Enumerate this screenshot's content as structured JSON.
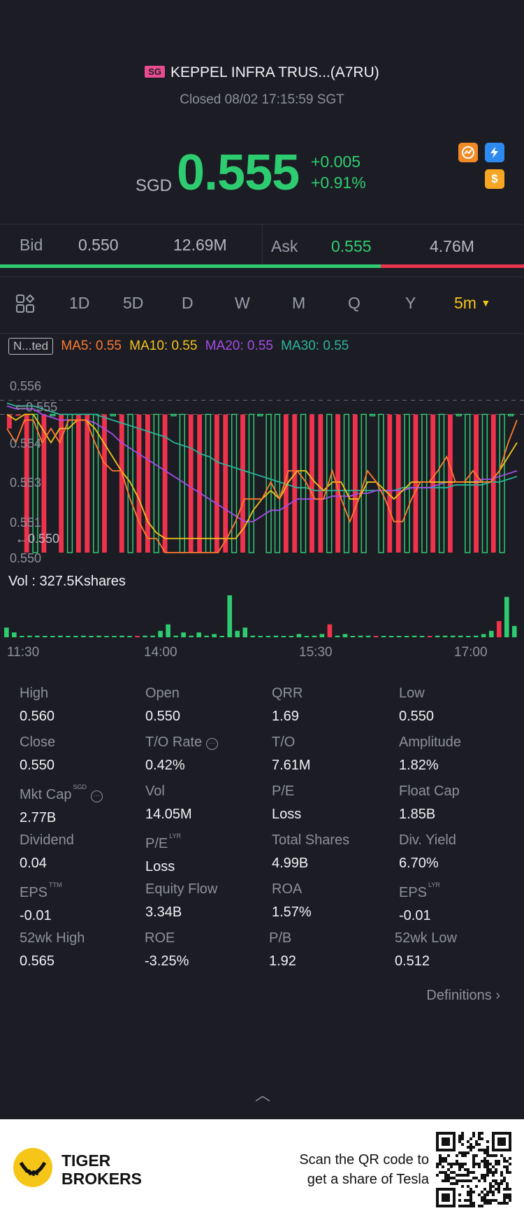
{
  "header": {
    "market_badge": "SG",
    "title": "KEPPEL INFRA TRUS...(A7RU)",
    "status": "Closed 08/02 17:15:59 SGT"
  },
  "quote": {
    "currency": "SGD",
    "price": "0.555",
    "change": "+0.005",
    "change_pct": "+0.91%",
    "icons": [
      "chart-badge-icon",
      "flash-1-icon",
      "dollar-icon"
    ]
  },
  "bidask": {
    "bid_label": "Bid",
    "bid_price": "0.550",
    "bid_size": "12.69M",
    "ask_label": "Ask",
    "ask_price": "0.555",
    "ask_size": "4.76M",
    "bid_ratio": 0.727
  },
  "tabs": {
    "items": [
      "1D",
      "5D",
      "D",
      "W",
      "M",
      "Q",
      "Y"
    ],
    "selected": "5m"
  },
  "indicators": {
    "chip": "N...ted",
    "ma5": "MA5: 0.55",
    "ma10": "MA10: 0.55",
    "ma20": "MA20: 0.55",
    "ma30": "MA30: 0.55",
    "colors": {
      "ma5": "#ff7a2e",
      "ma10": "#f3c41c",
      "ma20": "#a64ce8",
      "ma30": "#2bb59a",
      "up": "#2ecc71",
      "down": "#f0334d"
    }
  },
  "chart": {
    "y_labels": [
      "0.556",
      "0.555",
      "0.554",
      "0.553",
      "0.551",
      "0.550"
    ],
    "left_markers": [
      "0.555",
      "0.550"
    ],
    "vol_label": "Vol  : 327.5Kshares",
    "time_labels": [
      "11:30",
      "14:00",
      "15:30",
      "17:00"
    ]
  },
  "chart_data": {
    "type": "candlestick",
    "ylim": [
      0.5498,
      0.5563
    ],
    "candles": [
      {
        "o": 0.555,
        "c": 0.5545,
        "dir": "down"
      },
      {
        "o": 0.555,
        "c": 0.555,
        "dir": "down"
      },
      {
        "o": 0.555,
        "c": 0.5501,
        "dir": "down"
      },
      {
        "o": 0.5501,
        "c": 0.555,
        "dir": "up"
      },
      {
        "o": 0.555,
        "c": 0.5501,
        "dir": "down"
      },
      {
        "o": 0.555,
        "c": 0.555,
        "dir": "up"
      },
      {
        "o": 0.555,
        "c": 0.5501,
        "dir": "down"
      },
      {
        "o": 0.5501,
        "c": 0.555,
        "dir": "up"
      },
      {
        "o": 0.555,
        "c": 0.5501,
        "dir": "down"
      },
      {
        "o": 0.555,
        "c": 0.5501,
        "dir": "down"
      },
      {
        "o": 0.5501,
        "c": 0.555,
        "dir": "up"
      },
      {
        "o": 0.555,
        "c": 0.5501,
        "dir": "down"
      },
      {
        "o": 0.555,
        "c": 0.555,
        "dir": "up"
      },
      {
        "o": 0.555,
        "c": 0.5501,
        "dir": "down"
      },
      {
        "o": 0.5501,
        "c": 0.555,
        "dir": "up"
      },
      {
        "o": 0.555,
        "c": 0.5501,
        "dir": "down"
      },
      {
        "o": 0.555,
        "c": 0.5501,
        "dir": "down"
      },
      {
        "o": 0.5501,
        "c": 0.555,
        "dir": "up"
      },
      {
        "o": 0.555,
        "c": 0.5501,
        "dir": "down"
      },
      {
        "o": 0.555,
        "c": 0.555,
        "dir": "up"
      },
      {
        "o": 0.5501,
        "c": 0.555,
        "dir": "up"
      },
      {
        "o": 0.555,
        "c": 0.5501,
        "dir": "down"
      },
      {
        "o": 0.555,
        "c": 0.5501,
        "dir": "down"
      },
      {
        "o": 0.5501,
        "c": 0.555,
        "dir": "up"
      },
      {
        "o": 0.555,
        "c": 0.5501,
        "dir": "down"
      },
      {
        "o": 0.555,
        "c": 0.5501,
        "dir": "down"
      },
      {
        "o": 0.5501,
        "c": 0.555,
        "dir": "up"
      },
      {
        "o": 0.555,
        "c": 0.5501,
        "dir": "down"
      },
      {
        "o": 0.5501,
        "c": 0.555,
        "dir": "up"
      },
      {
        "o": 0.555,
        "c": 0.555,
        "dir": "up"
      },
      {
        "o": 0.5501,
        "c": 0.555,
        "dir": "up"
      },
      {
        "o": 0.5501,
        "c": 0.555,
        "dir": "up"
      },
      {
        "o": 0.555,
        "c": 0.5501,
        "dir": "down"
      },
      {
        "o": 0.555,
        "c": 0.5501,
        "dir": "down"
      },
      {
        "o": 0.5501,
        "c": 0.555,
        "dir": "up"
      },
      {
        "o": 0.555,
        "c": 0.5501,
        "dir": "down"
      },
      {
        "o": 0.555,
        "c": 0.5501,
        "dir": "down"
      },
      {
        "o": 0.5501,
        "c": 0.555,
        "dir": "up"
      },
      {
        "o": 0.555,
        "c": 0.5501,
        "dir": "down"
      },
      {
        "o": 0.5501,
        "c": 0.555,
        "dir": "up"
      },
      {
        "o": 0.555,
        "c": 0.5501,
        "dir": "down"
      },
      {
        "o": 0.5501,
        "c": 0.555,
        "dir": "up"
      },
      {
        "o": 0.555,
        "c": 0.555,
        "dir": "up"
      },
      {
        "o": 0.5501,
        "c": 0.555,
        "dir": "up"
      },
      {
        "o": 0.555,
        "c": 0.5501,
        "dir": "down"
      },
      {
        "o": 0.555,
        "c": 0.5501,
        "dir": "down"
      },
      {
        "o": 0.5501,
        "c": 0.555,
        "dir": "up"
      },
      {
        "o": 0.555,
        "c": 0.5501,
        "dir": "down"
      },
      {
        "o": 0.5501,
        "c": 0.555,
        "dir": "up"
      },
      {
        "o": 0.555,
        "c": 0.5501,
        "dir": "down"
      },
      {
        "o": 0.5501,
        "c": 0.555,
        "dir": "up"
      },
      {
        "o": 0.555,
        "c": 0.5501,
        "dir": "down"
      },
      {
        "o": 0.555,
        "c": 0.555,
        "dir": "up"
      },
      {
        "o": 0.5501,
        "c": 0.555,
        "dir": "up"
      },
      {
        "o": 0.555,
        "c": 0.5501,
        "dir": "down"
      },
      {
        "o": 0.5501,
        "c": 0.555,
        "dir": "up"
      },
      {
        "o": 0.555,
        "c": 0.5501,
        "dir": "down"
      },
      {
        "o": 0.5501,
        "c": 0.555,
        "dir": "up"
      },
      {
        "o": 0.555,
        "c": 0.555,
        "dir": "up"
      }
    ],
    "ma5": [
      0.5545,
      0.554,
      0.5548,
      0.5548,
      0.554,
      0.5545,
      0.554,
      0.5548,
      0.5548,
      0.5548,
      0.554,
      0.5533,
      0.553,
      0.553,
      0.552,
      0.5512,
      0.5506,
      0.5506,
      0.5501,
      0.5501,
      0.5501,
      0.5501,
      0.5501,
      0.5501,
      0.5501,
      0.5506,
      0.5512,
      0.552,
      0.552,
      0.552,
      0.5526,
      0.552,
      0.553,
      0.553,
      0.5526,
      0.552,
      0.552,
      0.553,
      0.552,
      0.5512,
      0.552,
      0.553,
      0.5526,
      0.552,
      0.5512,
      0.5512,
      0.552,
      0.5526,
      0.5526,
      0.553,
      0.5535,
      0.5526,
      0.5526,
      0.553,
      0.5526,
      0.5526,
      0.553,
      0.554,
      0.5548
    ],
    "ma10": [
      0.555,
      0.5548,
      0.555,
      0.555,
      0.5545,
      0.554,
      0.5545,
      0.5545,
      0.5548,
      0.5548,
      0.5545,
      0.554,
      0.5535,
      0.553,
      0.5526,
      0.552,
      0.5512,
      0.5508,
      0.5506,
      0.5506,
      0.5506,
      0.5506,
      0.5506,
      0.5506,
      0.5506,
      0.5506,
      0.5506,
      0.551,
      0.5516,
      0.552,
      0.5523,
      0.552,
      0.5526,
      0.553,
      0.553,
      0.5526,
      0.5523,
      0.5526,
      0.5526,
      0.552,
      0.552,
      0.5526,
      0.5526,
      0.5523,
      0.552,
      0.5523,
      0.5526,
      0.5526,
      0.5526,
      0.5526,
      0.5526,
      0.5526,
      0.5526,
      0.5526,
      0.5526,
      0.5526,
      0.553,
      0.5535,
      0.554
    ],
    "ma20": [
      0.5553,
      0.5552,
      0.5552,
      0.5552,
      0.555,
      0.5549,
      0.5548,
      0.5548,
      0.5548,
      0.5548,
      0.5547,
      0.5545,
      0.5543,
      0.554,
      0.5538,
      0.5536,
      0.5534,
      0.5532,
      0.553,
      0.5528,
      0.5526,
      0.5524,
      0.5522,
      0.552,
      0.5518,
      0.5516,
      0.5514,
      0.5512,
      0.5512,
      0.5514,
      0.5516,
      0.5516,
      0.5518,
      0.552,
      0.552,
      0.552,
      0.552,
      0.5521,
      0.5521,
      0.5521,
      0.5522,
      0.5522,
      0.5523,
      0.5523,
      0.5523,
      0.5523,
      0.5524,
      0.5524,
      0.5524,
      0.5525,
      0.5526,
      0.5526,
      0.5526,
      0.5526,
      0.5527,
      0.5527,
      0.5528,
      0.5529,
      0.553
    ],
    "ma30": [
      0.5554,
      0.5553,
      0.5553,
      0.5553,
      0.5552,
      0.5551,
      0.555,
      0.555,
      0.555,
      0.555,
      0.555,
      0.5549,
      0.5548,
      0.5547,
      0.5546,
      0.5545,
      0.5544,
      0.5543,
      0.5542,
      0.554,
      0.5539,
      0.5538,
      0.5536,
      0.5535,
      0.5533,
      0.5532,
      0.5531,
      0.553,
      0.5529,
      0.5528,
      0.5527,
      0.5526,
      0.5525,
      0.5524,
      0.5524,
      0.5523,
      0.5523,
      0.5523,
      0.5523,
      0.5523,
      0.5523,
      0.5523,
      0.5523,
      0.5523,
      0.5523,
      0.5524,
      0.5524,
      0.5524,
      0.5524,
      0.5524,
      0.5524,
      0.5525,
      0.5525,
      0.5525,
      0.5525,
      0.5526,
      0.5526,
      0.5527,
      0.5528
    ],
    "volumes": [
      6,
      3,
      0,
      1,
      1,
      0,
      0,
      1,
      0,
      0,
      1,
      0,
      1,
      0,
      0,
      1,
      0,
      0,
      1,
      1,
      4,
      8,
      1,
      3,
      1,
      3,
      1,
      2,
      0,
      26,
      4,
      6,
      1,
      0,
      0,
      1,
      0,
      0,
      2,
      0,
      1,
      2,
      8,
      1,
      2,
      0,
      1,
      1,
      0,
      0,
      0,
      0,
      0,
      1,
      0,
      0,
      1,
      1,
      1,
      1,
      0,
      1,
      2,
      4,
      10,
      25,
      7
    ]
  },
  "stats": [
    {
      "label": "High",
      "value": "0.560"
    },
    {
      "label": "Open",
      "value": "0.550"
    },
    {
      "label": "QRR",
      "value": "1.69"
    },
    {
      "label": "Low",
      "value": "0.550"
    },
    {
      "label": "Close",
      "value": "0.550"
    },
    {
      "label": "T/O Rate",
      "value": "0.42%",
      "info": true
    },
    {
      "label": "T/O",
      "value": "7.61M"
    },
    {
      "label": "Amplitude",
      "value": "1.82%"
    },
    {
      "label": "Mkt Cap",
      "value": "2.77B",
      "sup": "SGD",
      "info": true
    },
    {
      "label": "Vol",
      "value": "14.05M"
    },
    {
      "label": "P/E",
      "value": "Loss"
    },
    {
      "label": "Float Cap",
      "value": "1.85B"
    },
    {
      "label": "Dividend",
      "value": "0.04"
    },
    {
      "label": "P/E",
      "value": "Loss",
      "sup": "LYR"
    },
    {
      "label": "Total Shares",
      "value": "4.99B"
    },
    {
      "label": "Div. Yield",
      "value": "6.70%"
    },
    {
      "label": "EPS",
      "value": "-0.01",
      "sup": "TTM"
    },
    {
      "label": "Equity Flow",
      "value": "3.34B"
    },
    {
      "label": "ROA",
      "value": "1.57%"
    },
    {
      "label": "EPS",
      "value": "-0.01",
      "sup": "LYR"
    },
    {
      "label": "52wk High",
      "value": "0.565"
    },
    {
      "label": "ROE",
      "value": "-3.25%"
    },
    {
      "label": "P/B",
      "value": "1.92"
    },
    {
      "label": "52wk Low",
      "value": "0.512"
    }
  ],
  "footer": {
    "definitions": "Definitions",
    "brand_line1": "TIGER",
    "brand_line2": "BROKERS",
    "promo_line1": "Scan the QR code to",
    "promo_line2": "get a share of Tesla"
  }
}
